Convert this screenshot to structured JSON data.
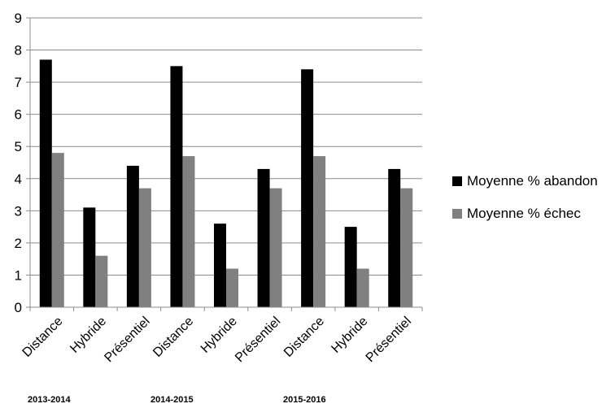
{
  "chart_data": {
    "type": "bar",
    "categories": [
      "Distance",
      "Hybride",
      "Présentiel",
      "Distance",
      "Hybride",
      "Présentiel",
      "Distance",
      "Hybride",
      "Présentiel"
    ],
    "groups": [
      "2013-2014",
      "2014-2015",
      "2015-2016"
    ],
    "series": [
      {
        "name": "Moyenne % abandon",
        "color": "#000000",
        "values": [
          7.7,
          3.1,
          4.4,
          7.5,
          2.6,
          4.3,
          7.4,
          2.5,
          4.3
        ]
      },
      {
        "name": "Moyenne % échec",
        "color": "#808080",
        "values": [
          4.8,
          1.6,
          3.7,
          4.7,
          1.2,
          3.7,
          4.7,
          1.2,
          3.7
        ]
      }
    ],
    "ylim": [
      0,
      9
    ],
    "yticks": [
      "0",
      "1",
      "2",
      "3",
      "4",
      "5",
      "6",
      "7",
      "8",
      "9"
    ],
    "grid": true,
    "legend_position": "right"
  }
}
